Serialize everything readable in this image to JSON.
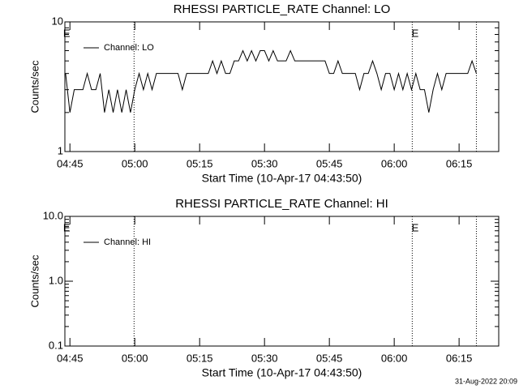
{
  "chart_data": [
    {
      "type": "line",
      "title": "RHESSI PARTICLE_RATE Channel: LO",
      "xlabel": "Start Time (10-Apr-17 04:43:50)",
      "ylabel": "Counts/sec",
      "log_y": true,
      "xlim": [
        "04:43:50",
        "06:24:10"
      ],
      "ylim": [
        1,
        10
      ],
      "yticks": [
        1,
        10
      ],
      "xticks": [
        "04:45",
        "05:00",
        "05:15",
        "05:30",
        "05:45",
        "06:00",
        "06:15"
      ],
      "vlines": [
        "04:59:50",
        "06:04:10",
        "06:19:00"
      ],
      "annotations": [
        {
          "text": "E",
          "x": "04:44:15"
        },
        {
          "text": "E",
          "x": "06:04:50"
        }
      ],
      "legend": "upper left",
      "x": [
        "04:44",
        "04:45",
        "04:46",
        "04:47",
        "04:48",
        "04:49",
        "04:50",
        "04:51",
        "04:52",
        "04:53",
        "04:54",
        "04:55",
        "04:56",
        "04:57",
        "04:58",
        "04:59",
        "05:00",
        "05:01",
        "05:02",
        "05:03",
        "05:04",
        "05:05",
        "05:06",
        "05:07",
        "05:08",
        "05:09",
        "05:10",
        "05:11",
        "05:12",
        "05:13",
        "05:14",
        "05:15",
        "05:16",
        "05:17",
        "05:18",
        "05:19",
        "05:20",
        "05:21",
        "05:22",
        "05:23",
        "05:24",
        "05:25",
        "05:26",
        "05:27",
        "05:28",
        "05:29",
        "05:30",
        "05:31",
        "05:32",
        "05:33",
        "05:34",
        "05:35",
        "05:36",
        "05:37",
        "05:38",
        "05:39",
        "05:40",
        "05:41",
        "05:42",
        "05:43",
        "05:44",
        "05:45",
        "05:46",
        "05:47",
        "05:48",
        "05:49",
        "05:50",
        "05:51",
        "05:52",
        "05:53",
        "05:54",
        "05:55",
        "05:56",
        "05:57",
        "05:58",
        "05:59",
        "06:00",
        "06:01",
        "06:02",
        "06:03",
        "06:04",
        "06:05",
        "06:06",
        "06:07",
        "06:08",
        "06:09",
        "06:10",
        "06:11",
        "06:12",
        "06:13",
        "06:14",
        "06:15",
        "06:16",
        "06:17",
        "06:18",
        "06:19"
      ],
      "series": [
        {
          "name": "Channel: LO",
          "color": "#000000",
          "values": [
            4,
            2,
            3,
            3,
            3,
            4,
            3,
            3,
            4,
            2,
            3,
            2,
            3,
            2,
            3,
            2,
            3,
            4,
            3,
            4,
            3,
            4,
            4,
            4,
            4,
            4,
            4,
            3,
            4,
            4,
            4,
            4,
            4,
            4,
            5,
            4,
            5,
            4,
            4,
            5,
            5,
            6,
            5,
            6,
            5,
            6,
            6,
            5,
            6,
            5,
            5,
            5,
            6,
            5,
            5,
            5,
            5,
            5,
            5,
            5,
            5,
            4,
            4,
            5,
            4,
            4,
            4,
            4,
            3,
            4,
            4,
            5,
            4,
            3,
            4,
            4,
            3,
            4,
            3,
            4,
            3,
            4,
            3,
            3,
            2,
            3,
            4,
            3,
            4,
            4,
            4,
            4,
            4,
            4,
            5,
            4
          ]
        }
      ]
    },
    {
      "type": "line",
      "title": "RHESSI PARTICLE_RATE Channel: HI",
      "xlabel": "Start Time (10-Apr-17 04:43:50)",
      "ylabel": "Counts/sec",
      "log_y": true,
      "xlim": [
        "04:43:50",
        "06:24:10"
      ],
      "ylim": [
        0.1,
        10
      ],
      "yticks": [
        0.1,
        {
          "value": 1,
          "label": "1.0"
        },
        {
          "value": 10,
          "label": "10.0"
        }
      ],
      "xticks": [
        "04:45",
        "05:00",
        "05:15",
        "05:30",
        "05:45",
        "06:00",
        "06:15"
      ],
      "vlines": [
        "04:59:50",
        "06:04:10",
        "06:19:00"
      ],
      "annotations": [
        {
          "text": "E",
          "x": "04:44:15"
        },
        {
          "text": "E",
          "x": "06:04:50"
        }
      ],
      "legend": "upper left",
      "x": [],
      "series": [
        {
          "name": "Channel: HI",
          "color": "#000000",
          "values": []
        }
      ]
    }
  ],
  "timestamp": "31-Aug-2022 20:09"
}
